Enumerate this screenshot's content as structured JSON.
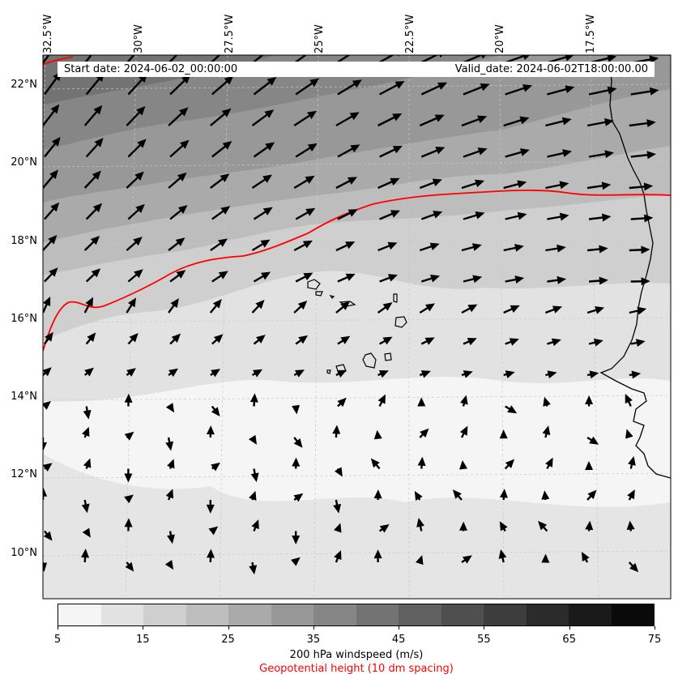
{
  "header": {
    "start_date": "Start date: 2024-06-02_00:00:00",
    "valid_date": "Valid_date: 2024-06-02T18:00:00.00"
  },
  "axes": {
    "lon_labels": [
      "32.5°W",
      "30°W",
      "27.5°W",
      "25°W",
      "22.5°W",
      "20°W",
      "17.5°W"
    ],
    "lat_labels": [
      "22°N",
      "20°N",
      "18°N",
      "16°N",
      "14°N",
      "12°N",
      "10°N"
    ]
  },
  "colorbar": {
    "ticks": [
      "5",
      "15",
      "25",
      "35",
      "45",
      "55",
      "65",
      "75"
    ],
    "colors": [
      "#f5f5f5",
      "#e2e2e2",
      "#cfcfcf",
      "#bdbdbd",
      "#aaaaaa",
      "#989898",
      "#868686",
      "#737373",
      "#606060",
      "#4f4f4f",
      "#3d3d3d",
      "#2b2b2b",
      "#1a1a1a",
      "#0a0a0a"
    ],
    "label": "200 hPa windspeed (m/s)",
    "contour_label": "Geopotential height (10 dm spacing)",
    "contour_color": "#ff0000"
  }
}
